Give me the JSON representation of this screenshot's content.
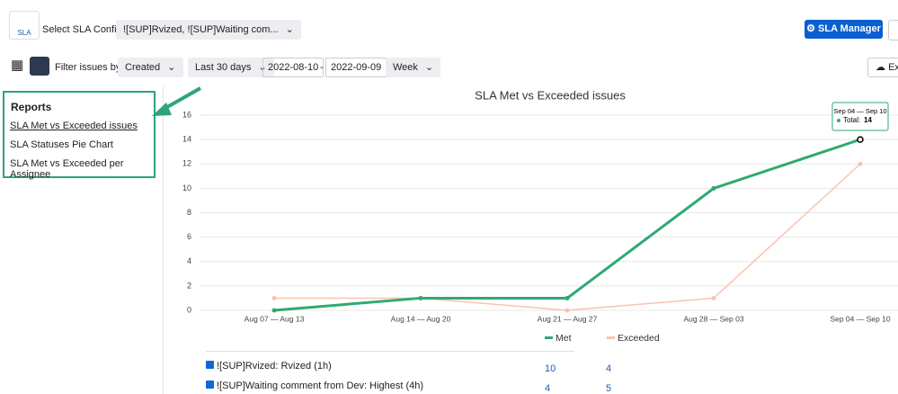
{
  "header": {
    "logo": "SLA",
    "config_label": "Select SLA Config",
    "config_value": "![SUP]Rvized, ![SUP]Waiting com...",
    "manager_button": "SLA Manager",
    "export_button": "Ex"
  },
  "filters": {
    "label": "Filter issues by:",
    "field": "Created",
    "period": "Last 30 days",
    "from": "2022-08-10",
    "separator": "-",
    "to": "2022-09-09",
    "granularity": "Week"
  },
  "sidebar": {
    "title": "Reports",
    "links": [
      "SLA Met vs Exceeded issues",
      "SLA Statuses Pie Chart",
      "SLA Met vs Exceeded per Assignee"
    ]
  },
  "chart_data": {
    "type": "line",
    "title": "SLA Met vs Exceeded issues",
    "categories": [
      "Aug 07 — Aug 13",
      "Aug 14 — Aug 20",
      "Aug 21 — Aug 27",
      "Aug 28 — Sep 03",
      "Sep 04 — Sep 10"
    ],
    "series": [
      {
        "name": "Met",
        "color": "#2eaa72",
        "values": [
          0,
          1,
          1,
          10,
          14
        ]
      },
      {
        "name": "Exceeded",
        "color": "#f8c4ae",
        "values": [
          1,
          1,
          0,
          1,
          12
        ]
      }
    ],
    "ylim": [
      0,
      16
    ],
    "yticks": [
      0,
      2,
      4,
      6,
      8,
      10,
      12,
      14,
      16
    ],
    "grid": true,
    "tooltip": {
      "label": "Total:"
    }
  },
  "table": {
    "rows": [
      [
        "![SUP]Rvized: Rvized (1h)",
        10,
        4
      ],
      [
        "![SUP]Waiting comment from Dev: Highest (4h)",
        4,
        5
      ]
    ]
  }
}
